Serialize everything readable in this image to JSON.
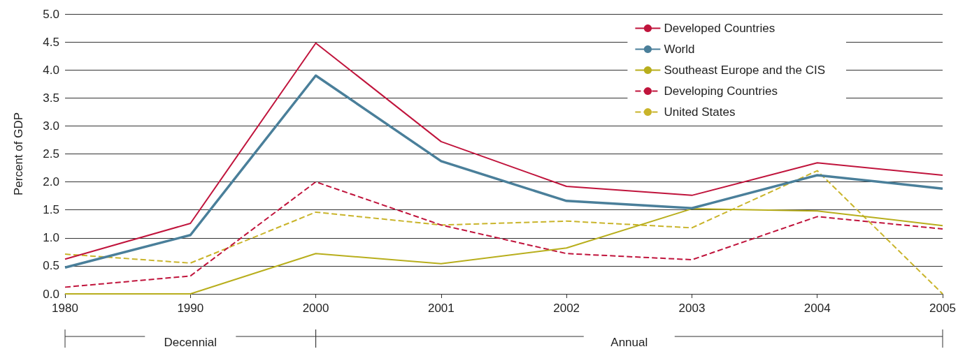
{
  "chart_data": {
    "type": "line",
    "ylabel": "Percent of GDP",
    "categories": [
      "1980",
      "1990",
      "2000",
      "2001",
      "2002",
      "2003",
      "2004",
      "2005"
    ],
    "series": [
      {
        "name": "Developed Countries",
        "color": "#c0143c",
        "line_style": "solid",
        "values": [
          0.62,
          1.26,
          4.48,
          2.72,
          1.92,
          1.76,
          2.34,
          2.12
        ]
      },
      {
        "name": "World",
        "color": "#4a7f9a",
        "line_style": "solid",
        "values": [
          0.47,
          1.05,
          3.9,
          2.37,
          1.66,
          1.53,
          2.12,
          1.88
        ]
      },
      {
        "name": "Southeast Europe and the CIS",
        "color": "#b8ae1c",
        "line_style": "solid",
        "values": [
          0,
          0,
          0.72,
          0.54,
          0.82,
          1.52,
          1.48,
          1.22
        ]
      },
      {
        "name": "Developing Countries",
        "color": "#c0143c",
        "line_style": "dashed",
        "values": [
          0.12,
          0.32,
          2.0,
          1.23,
          0.72,
          0.61,
          1.38,
          1.16
        ]
      },
      {
        "name": "United States",
        "color": "#c9b42a",
        "line_style": "dashed",
        "values": [
          0.71,
          0.55,
          1.46,
          1.23,
          1.3,
          1.18,
          2.2,
          0
        ]
      }
    ],
    "ylim": [
      0,
      5
    ],
    "yticks": [
      {
        "value": 0,
        "label": "0.0"
      },
      {
        "value": 0.5,
        "label": "0.5"
      },
      {
        "value": 1,
        "label": "1.0"
      },
      {
        "value": 1.5,
        "label": "1.5"
      },
      {
        "value": 2,
        "label": "2.0"
      },
      {
        "value": 2.5,
        "label": "2.5"
      },
      {
        "value": 3,
        "label": "3.0"
      },
      {
        "value": 3.5,
        "label": "3.5"
      },
      {
        "value": 4,
        "label": "4.0"
      },
      {
        "value": 4.5,
        "label": "4.5"
      },
      {
        "value": 5,
        "label": "5.0"
      }
    ],
    "grid": "y",
    "legend": "top right",
    "marker": "none",
    "annotations": [
      "Decennial",
      "Annual"
    ]
  }
}
